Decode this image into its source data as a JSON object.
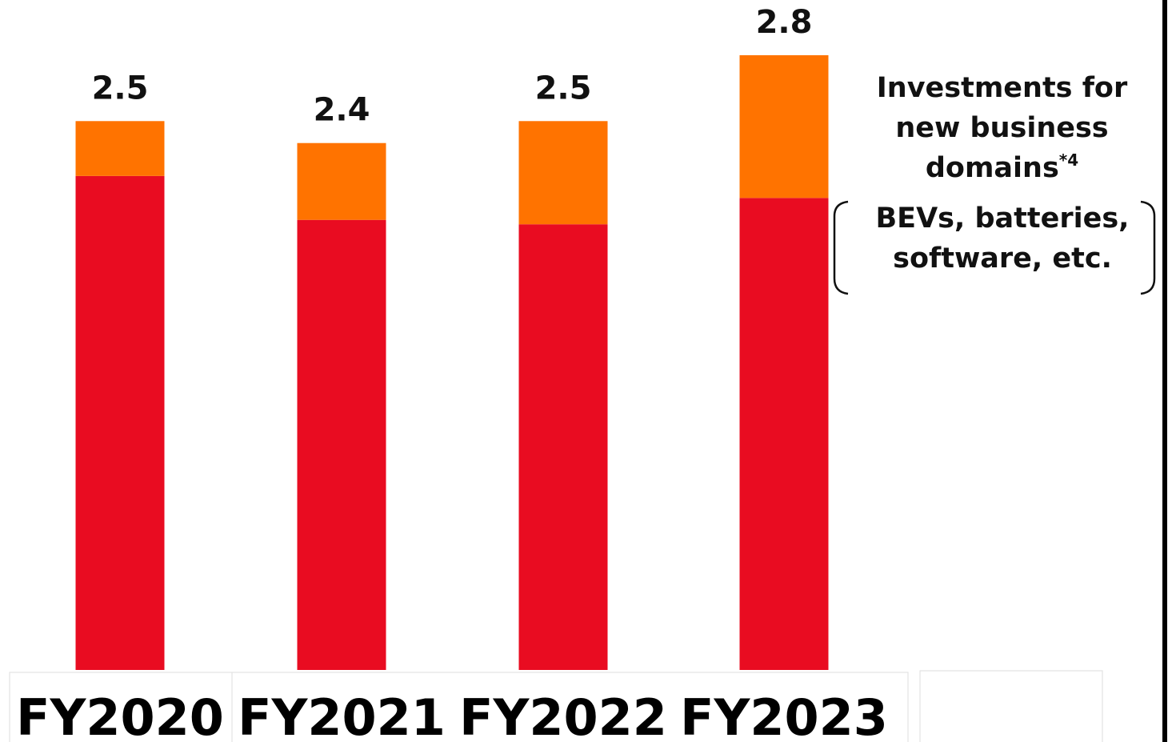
{
  "chart_data": {
    "type": "stacked_bar",
    "categories": [
      "FY2020",
      "FY2021",
      "FY2022",
      "FY2023"
    ],
    "series": [
      {
        "color": "#e90c21",
        "values": [
          2.25,
          2.05,
          2.03,
          2.15
        ]
      },
      {
        "name": "Investments for new business domains",
        "color": "#ff7300",
        "values": [
          0.25,
          0.35,
          0.47,
          0.65
        ]
      }
    ],
    "totals": [
      2.5,
      2.4,
      2.5,
      2.8
    ],
    "annotation": {
      "footnote": "*4",
      "detail": "BEVs, batteries, software, etc."
    }
  }
}
